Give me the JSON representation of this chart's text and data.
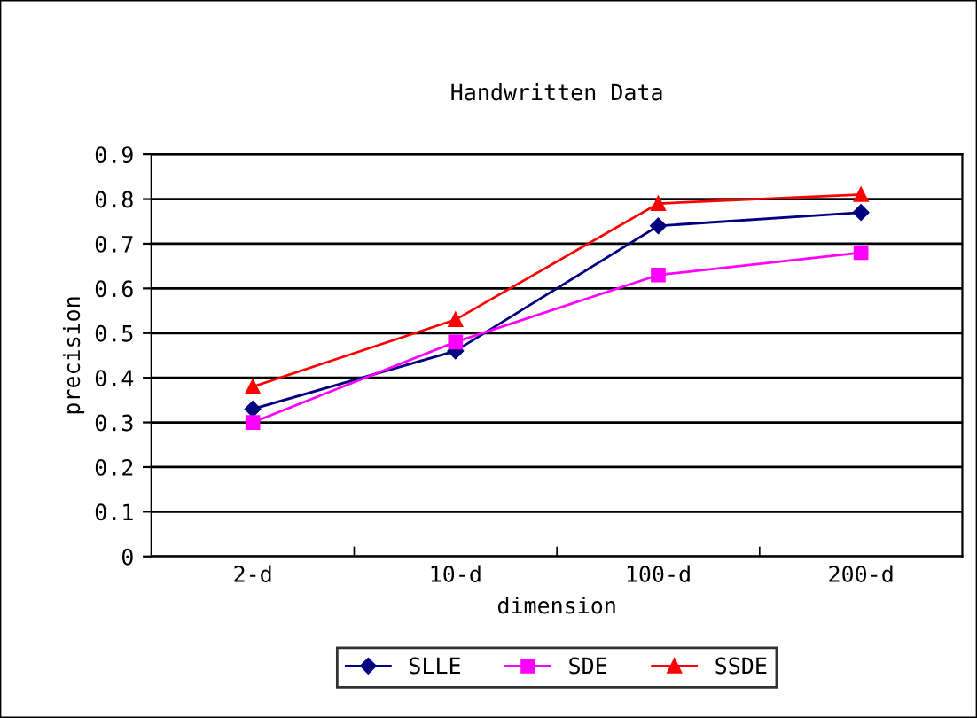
{
  "chart_data": {
    "type": "line",
    "title": "Handwritten Data",
    "xlabel": "dimension",
    "ylabel": "precision",
    "categories": [
      "2-d",
      "10-d",
      "100-d",
      "200-d"
    ],
    "series": [
      {
        "name": "SLLE",
        "color": "#000080",
        "marker": "diamond",
        "values": [
          0.33,
          0.46,
          0.74,
          0.77
        ]
      },
      {
        "name": "SDE",
        "color": "#ff00ff",
        "marker": "square",
        "values": [
          0.3,
          0.48,
          0.63,
          0.68
        ]
      },
      {
        "name": "SSDE",
        "color": "#ff0000",
        "marker": "triangle",
        "values": [
          0.38,
          0.53,
          0.79,
          0.81
        ]
      }
    ],
    "ylim": [
      0,
      0.9
    ],
    "yticks": [
      0,
      0.1,
      0.2,
      0.3,
      0.4,
      0.5,
      0.6,
      0.7,
      0.8,
      0.9
    ],
    "grid": "y",
    "legend": "bottom",
    "line_style": "solid"
  }
}
